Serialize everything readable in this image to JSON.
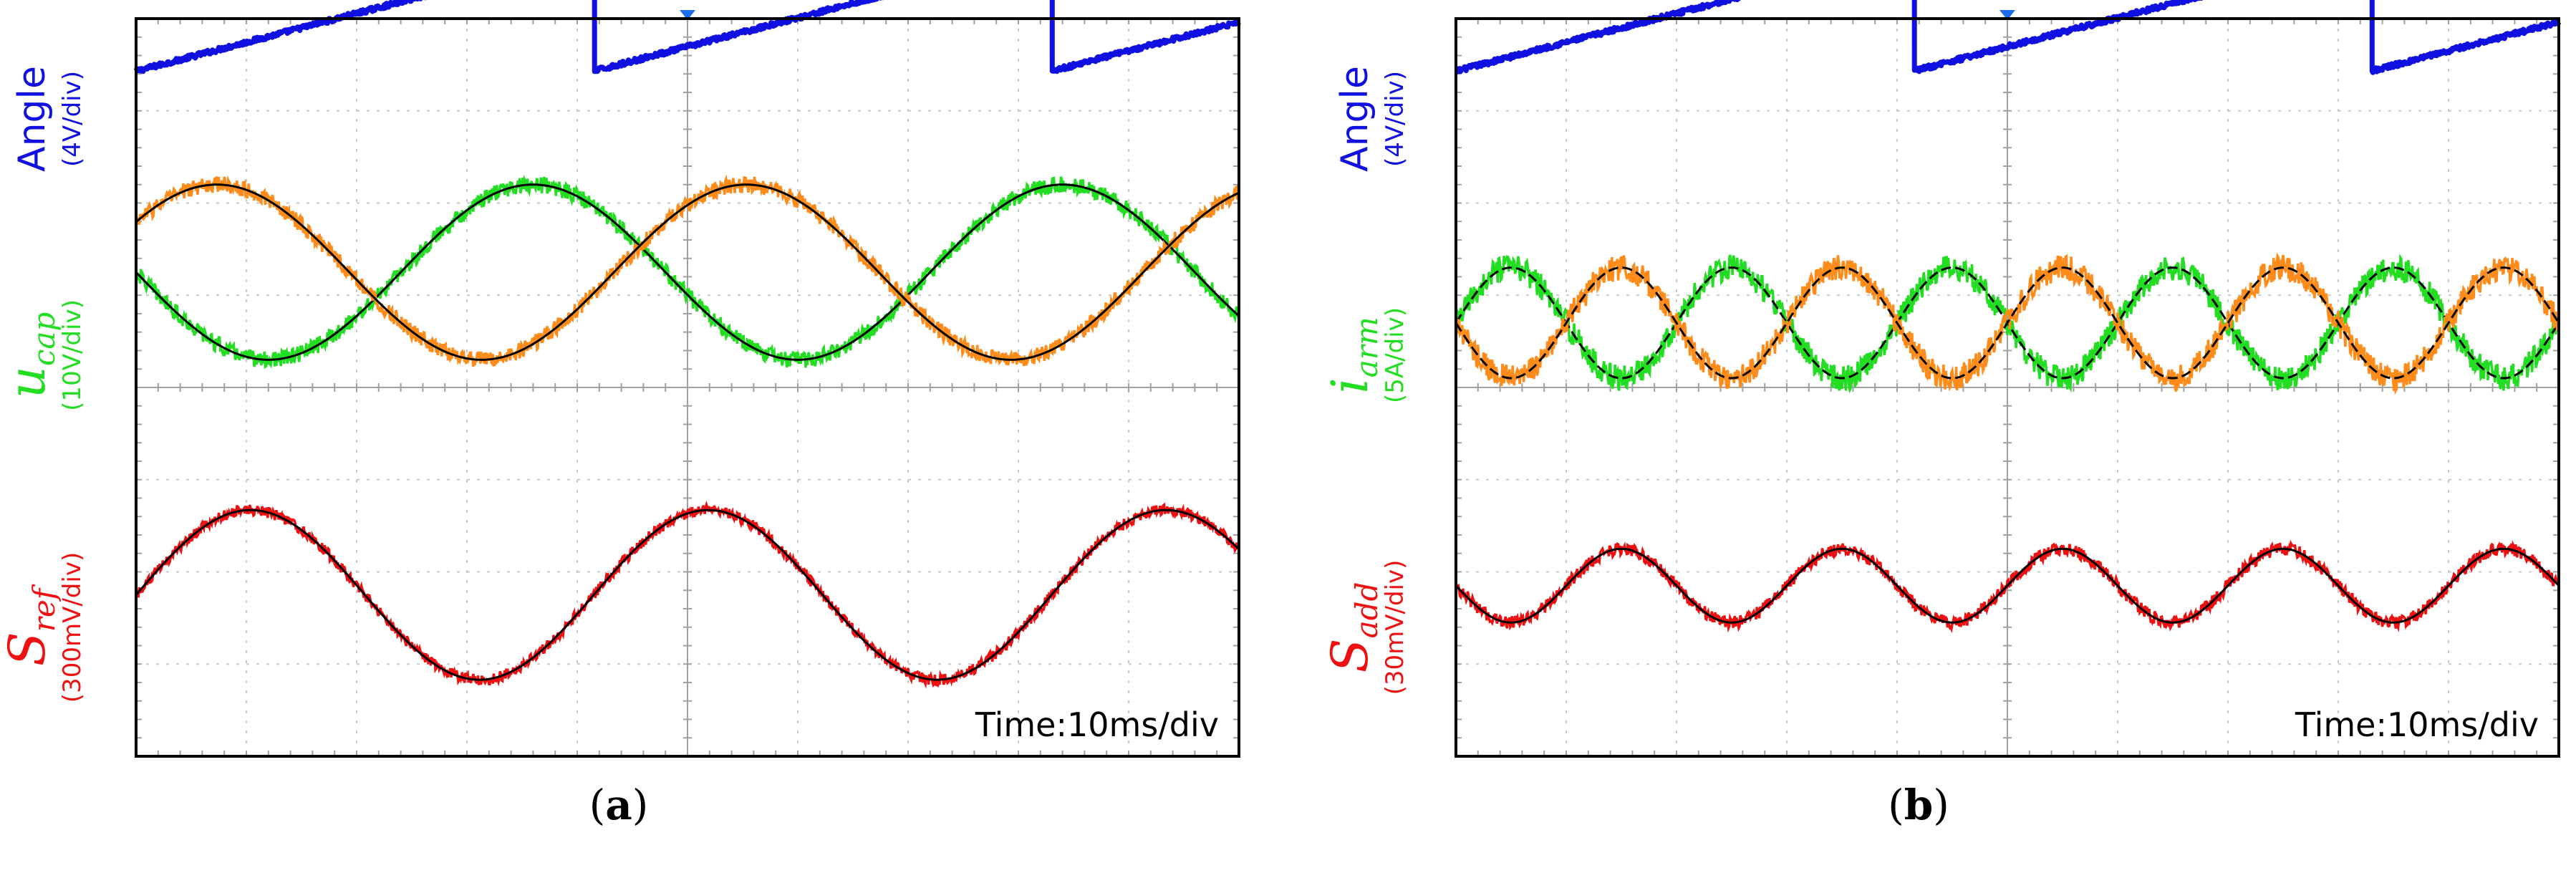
{
  "chart_data": [
    {
      "type": "line",
      "panel_label": "a",
      "time_label": "Time:10ms/div",
      "channels": [
        {
          "symbol": "Angle",
          "subscript": "",
          "scale": "(4V/div)",
          "color": "#1010e0"
        },
        {
          "symbol": "u",
          "subscript": "cap",
          "scale": "(10V/div)",
          "color": "#22dd22"
        },
        {
          "symbol": "S",
          "subscript": "ref",
          "scale": "(300mV/div)",
          "color": "#ee1111"
        }
      ],
      "divisions": {
        "x": 10,
        "y": 8
      },
      "series": [
        {
          "channel": "angle",
          "kind": "sawtooth",
          "color": "#1010e0",
          "period_div": 4.15,
          "phase_div": 0.0,
          "low_div": 7.43,
          "high_div": 8.73
        },
        {
          "channel": "u_cap_green",
          "kind": "sine",
          "color": "#22dd22",
          "fit_color": "#000000",
          "center_div": 5.25,
          "amplitude_div": 0.95,
          "period_div": 4.8,
          "phase_deg": 180,
          "noise": 0.09
        },
        {
          "channel": "u_cap_orange",
          "kind": "sine",
          "color": "#ff8c1a",
          "fit_color": "#000000",
          "center_div": 5.25,
          "amplitude_div": 0.95,
          "period_div": 4.8,
          "phase_deg": 35,
          "noise": 0.09
        },
        {
          "channel": "s_ref",
          "kind": "sine",
          "color": "#ee1111",
          "fit_color": "#000000",
          "center_div": 1.75,
          "amplitude_div": 0.92,
          "period_div": 4.15,
          "phase_deg": 0,
          "noise": 0.06
        }
      ]
    },
    {
      "type": "line",
      "panel_label": "b",
      "time_label": "Time:10ms/div",
      "channels": [
        {
          "symbol": "Angle",
          "subscript": "",
          "scale": "(4V/div)",
          "color": "#1010e0"
        },
        {
          "symbol": "i",
          "subscript": "arm",
          "scale": "(5A/div)",
          "color": "#22dd22"
        },
        {
          "symbol": "S",
          "subscript": "add",
          "scale": "(30mV/div)",
          "color": "#ee1111"
        }
      ],
      "divisions": {
        "x": 10,
        "y": 8
      },
      "series": [
        {
          "channel": "angle",
          "kind": "sawtooth",
          "color": "#1010e0",
          "period_div": 4.15,
          "phase_div": 0.0,
          "low_div": 7.43,
          "high_div": 8.73
        },
        {
          "channel": "i_arm_green",
          "kind": "sine",
          "color": "#22dd22",
          "fit_color": "#000000",
          "center_div": 4.7,
          "amplitude_div": 0.6,
          "period_div": 2.0,
          "phase_deg": 0,
          "noise": 0.14
        },
        {
          "channel": "i_arm_orange",
          "kind": "sine",
          "color": "#ff8c1a",
          "fit_color": "#000000",
          "center_div": 4.7,
          "amplitude_div": 0.6,
          "period_div": 2.0,
          "phase_deg": 180,
          "noise": 0.14
        },
        {
          "channel": "s_add",
          "kind": "sine",
          "color": "#ee1111",
          "fit_color": "#000000",
          "center_div": 1.85,
          "amplitude_div": 0.4,
          "period_div": 2.0,
          "phase_deg": 180,
          "noise": 0.07
        }
      ]
    }
  ]
}
